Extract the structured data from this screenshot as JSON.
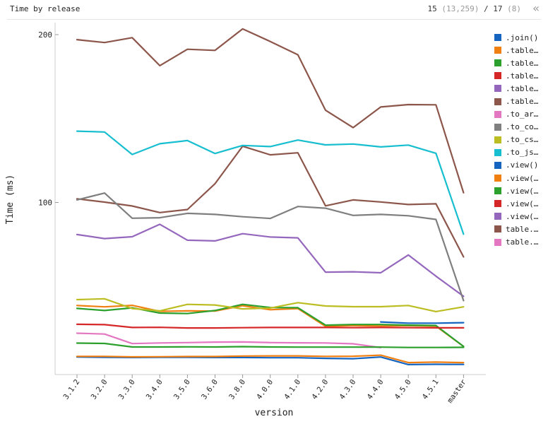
{
  "header": {
    "title": "Time by release",
    "shown": "15",
    "shown_detail": "(13,259)",
    "separator": "/",
    "total": "17",
    "total_detail": "(8)",
    "collapse_glyph": "«"
  },
  "chart_data": {
    "type": "line",
    "xlabel": "version",
    "ylabel": "Time (ms)",
    "ylim": [
      0,
      210
    ],
    "yticks": [
      100,
      200
    ],
    "grid": false,
    "legend_position": "right",
    "categories": [
      "3.1.2",
      "3.2.0",
      "3.3.0",
      "3.4.0",
      "3.5.0",
      "3.6.0",
      "3.8.0",
      "4.0.0",
      "4.1.0",
      "4.2.0",
      "4.3.0",
      "4.4.0",
      "4.5.0",
      "4.5.1",
      "master"
    ],
    "series": [
      {
        "name": ".join()",
        "color": "#1565c0",
        "values": [
          null,
          null,
          null,
          null,
          null,
          null,
          null,
          null,
          null,
          null,
          null,
          28.8,
          28.1,
          28.1,
          28.4
        ]
      },
      {
        "name": ".table…",
        "color": "#f07f12",
        "values": [
          38.6,
          37.8,
          38.7,
          35.1,
          35.4,
          35.3,
          38.5,
          36.1,
          36.8,
          26.2,
          26.7,
          26.4,
          26.6,
          26.3,
          14.2
        ]
      },
      {
        "name": ".table…",
        "color": "#2ca02c",
        "values": [
          36.9,
          35.6,
          37.2,
          34.1,
          33.8,
          35.6,
          39.3,
          37.4,
          37.3,
          26.9,
          27.3,
          27.3,
          26.9,
          26.7,
          14.2
        ]
      },
      {
        "name": ".table…",
        "color": "#d62728",
        "values": [
          27.4,
          27.2,
          25.5,
          25.6,
          25.2,
          25.2,
          25.4,
          25.5,
          25.5,
          25.5,
          25.4,
          25.5,
          25.4,
          25.3,
          25.3
        ]
      },
      {
        "name": ".table…",
        "color": "#9467bd",
        "values": [
          80.9,
          78.5,
          79.6,
          87.0,
          77.5,
          77.1,
          81.4,
          79.4,
          78.9,
          58.5,
          58.7,
          58.1,
          68.7,
          56.1,
          44.1
        ]
      },
      {
        "name": ".table…",
        "color": "#8c564b",
        "values": [
          102.2,
          100.2,
          97.9,
          94.0,
          95.8,
          111.2,
          133.5,
          128.4,
          129.6,
          98.0,
          101.5,
          100.3,
          98.8,
          99.2,
          67.6
        ]
      },
      {
        "name": ".to_ar…",
        "color": "#e377c2",
        "values": [
          22.1,
          21.6,
          15.9,
          16.3,
          16.5,
          16.8,
          16.9,
          16.5,
          16.4,
          16.3,
          15.8,
          13.5,
          null,
          null,
          null
        ]
      },
      {
        "name": ".to_co…",
        "color": "#7f7f7f",
        "values": [
          101.5,
          105.6,
          90.6,
          90.9,
          93.5,
          92.9,
          91.5,
          90.5,
          97.6,
          96.6,
          92.3,
          92.9,
          92.1,
          89.9,
          41.5
        ]
      },
      {
        "name": ".to_cs…",
        "color": "#bcbd22",
        "values": [
          42.1,
          42.6,
          36.8,
          35.4,
          39.3,
          38.9,
          36.6,
          37.1,
          40.3,
          38.3,
          37.9,
          37.9,
          38.6,
          35.0,
          37.8
        ]
      },
      {
        "name": ".to_js…",
        "color": "#17becf",
        "values": [
          142.5,
          142.0,
          128.6,
          135.0,
          136.9,
          129.2,
          134.0,
          133.3,
          137.2,
          134.3,
          134.8,
          133.1,
          134.2,
          129.3,
          81.1
        ]
      },
      {
        "name": ".view()",
        "color": "#1565c0",
        "values": [
          7.9,
          7.7,
          7.6,
          7.7,
          7.7,
          7.6,
          7.6,
          7.5,
          7.5,
          7.1,
          6.9,
          7.9,
          3.4,
          3.6,
          3.5
        ]
      },
      {
        "name": ".view(…",
        "color": "#f07f12",
        "values": [
          8.3,
          8.3,
          8.0,
          8.1,
          8.2,
          8.2,
          8.5,
          8.6,
          8.6,
          8.3,
          8.4,
          9.0,
          4.6,
          4.9,
          4.6
        ]
      },
      {
        "name": ".view(…",
        "color": "#2ca02c",
        "values": [
          16.2,
          16.0,
          13.9,
          13.9,
          14.0,
          13.9,
          14.1,
          13.9,
          13.8,
          13.8,
          13.8,
          13.8,
          13.6,
          13.6,
          13.7
        ]
      },
      {
        "name": ".view(…",
        "color": "#d62728",
        "values": [
          null,
          null,
          null,
          null,
          null,
          null,
          null,
          null,
          null,
          null,
          null,
          null,
          null,
          null,
          null
        ]
      },
      {
        "name": ".view(…",
        "color": "#9467bd",
        "values": [
          null,
          null,
          null,
          null,
          null,
          null,
          null,
          null,
          null,
          null,
          null,
          null,
          null,
          null,
          null
        ]
      },
      {
        "name": "table.…",
        "color": "#8c564b",
        "values": [
          197.0,
          195.3,
          198.2,
          181.5,
          191.3,
          190.6,
          203.4,
          195.9,
          188.0,
          155.0,
          144.6,
          156.9,
          158.3,
          158.2,
          105.8
        ]
      },
      {
        "name": "table.…",
        "color": "#e377c2",
        "values": [
          null,
          null,
          null,
          null,
          null,
          null,
          null,
          null,
          null,
          null,
          null,
          null,
          null,
          null,
          null
        ]
      }
    ]
  }
}
